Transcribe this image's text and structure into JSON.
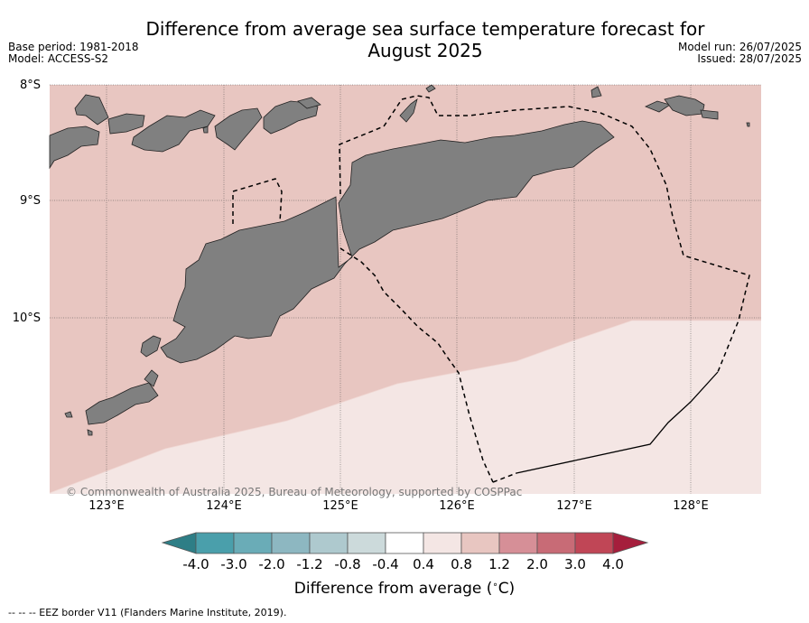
{
  "title_line1": "Difference from average sea surface temperature forecast for",
  "title_line2": "August 2025",
  "base_period": "Base period: 1981-2018",
  "model": "Model: ACCESS-S2",
  "model_run": "Model run: 26/07/2025",
  "issued": "Issued: 28/07/2025",
  "lat_labels": [
    "8°S",
    "9°S",
    "10°S"
  ],
  "lon_labels": [
    "123°E",
    "124°E",
    "125°E",
    "126°E",
    "127°E",
    "128°E"
  ],
  "copyright": "© Commonwealth of Australia 2025, Bureau of Meteorology, supported by COSPPac",
  "colorbar": {
    "ticks": [
      "-4.0",
      "-3.0",
      "-2.0",
      "-1.2",
      "-0.8",
      "-0.4",
      "0.4",
      "0.8",
      "1.2",
      "2.0",
      "3.0",
      "4.0"
    ],
    "colors": [
      "#2e7e86",
      "#4a9fab",
      "#6aacb7",
      "#8db7c1",
      "#aec9ce",
      "#ccdadb",
      "#ffffff",
      "#f4e6e4",
      "#e8c6c1",
      "#d68f97",
      "#c86b76",
      "#c04656",
      "#a51e3c"
    ],
    "title": "Difference from average (°C)"
  },
  "legend_footer": "--  --  -- EEZ border V11 (Flanders Marine Institute, 2019).",
  "map_colors": {
    "band_08_12": "#e8c6c1",
    "band_04_08": "#f4e6e4",
    "land": "#808080",
    "eez": "#000000"
  }
}
